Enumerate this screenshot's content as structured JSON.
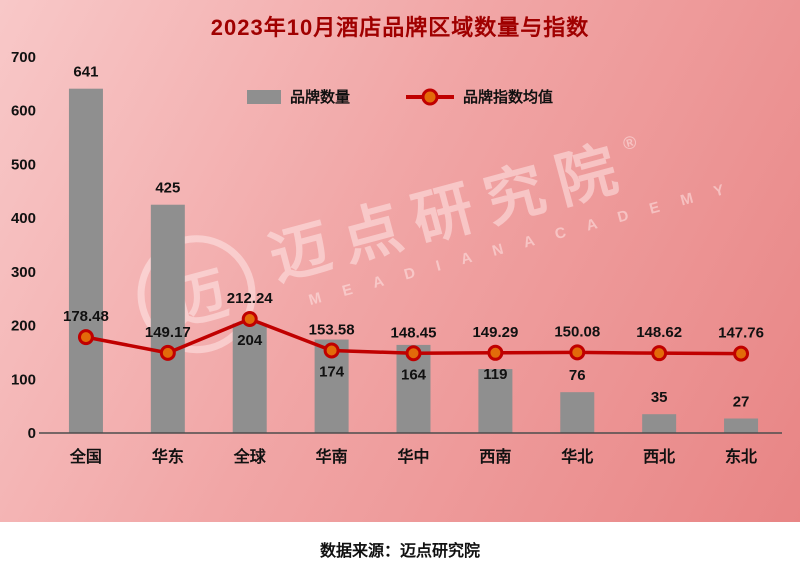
{
  "title": "2023年10月酒店品牌区域数量与指数",
  "legend": {
    "bars": "品牌数量",
    "line": "品牌指数均值"
  },
  "source": "数据来源：迈点研究院",
  "watermark": {
    "logo_glyph": "迈",
    "main": "迈点研究院",
    "reg": "®",
    "sub": "M E A D I A N   A C A D E M Y"
  },
  "colors": {
    "bar": "#8f8f8f",
    "line": "#c00000",
    "marker_fill": "#e26b0a",
    "title": "#a00000",
    "label": "#111111"
  },
  "chart_data": {
    "type": "bar",
    "subtype": "bar+line combo",
    "title": "2023年10月酒店品牌区域数量与指数",
    "categories": [
      "全国",
      "华东",
      "全球",
      "华南",
      "华中",
      "西南",
      "华北",
      "西北",
      "东北"
    ],
    "series": [
      {
        "name": "品牌数量",
        "type": "bar",
        "values": [
          641,
          425,
          204,
          174,
          164,
          119,
          76,
          35,
          27
        ]
      },
      {
        "name": "品牌指数均值",
        "type": "line",
        "values": [
          178.48,
          149.17,
          212.24,
          153.58,
          148.45,
          149.29,
          150.08,
          148.62,
          147.76
        ]
      }
    ],
    "xlabel": "",
    "ylabel": "",
    "ylim": [
      0,
      700
    ],
    "yticks": [
      0,
      100,
      200,
      300,
      400,
      500,
      600,
      700
    ],
    "grid": false,
    "legend_position": "top-center"
  }
}
